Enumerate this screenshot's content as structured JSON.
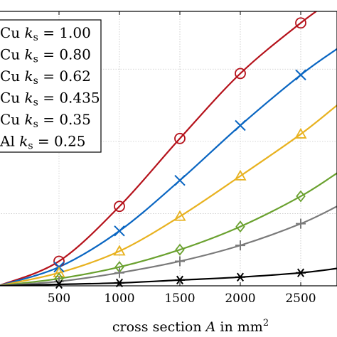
{
  "chart_data": {
    "type": "line",
    "title": "",
    "xlabel": "cross section A in mm²",
    "xlabel_parts": {
      "lead": "cross section ",
      "var": "A",
      "mid": " in mm",
      "sup": "2"
    },
    "ylabel": "",
    "xlim": [
      0,
      2800
    ],
    "ylim": [
      0,
      1.9
    ],
    "x_ticks": [
      500,
      1000,
      1500,
      2000,
      2500
    ],
    "x_tick_labels": [
      "500",
      "1000",
      "1500",
      "2000",
      "2500"
    ],
    "y_grid": [
      0.5,
      1.0,
      1.5
    ],
    "grid": true,
    "legend_position": "top-left",
    "series": [
      {
        "name": "Cu  ks = 1.00",
        "label": {
          "mat": "Cu",
          "sym": "k",
          "sub": "s",
          "val": "= 1.00"
        },
        "color": "#b5121b",
        "marker": "circle",
        "x": [
          0,
          500,
          1000,
          1500,
          2000,
          2500,
          2800
        ],
        "y": [
          0.0,
          0.17,
          0.55,
          1.02,
          1.47,
          1.82,
          2.0
        ]
      },
      {
        "name": "Cu  ks = 0.80",
        "label": {
          "mat": "Cu",
          "sym": "k",
          "sub": "s",
          "val": "= 0.80"
        },
        "color": "#0a66c2",
        "marker": "x",
        "x": [
          0,
          500,
          1000,
          1500,
          2000,
          2500,
          2800
        ],
        "y": [
          0.0,
          0.13,
          0.38,
          0.73,
          1.11,
          1.46,
          1.64
        ]
      },
      {
        "name": "Cu  ks = 0.62",
        "label": {
          "mat": "Cu",
          "sym": "k",
          "sub": "s",
          "val": "= 0.62"
        },
        "color": "#e8b220",
        "marker": "triangle",
        "x": [
          0,
          500,
          1000,
          1500,
          2000,
          2500,
          2800
        ],
        "y": [
          0.0,
          0.09,
          0.24,
          0.48,
          0.76,
          1.05,
          1.25
        ]
      },
      {
        "name": "Cu  ks = 0.435",
        "label": {
          "mat": "Cu",
          "sym": "k",
          "sub": "s",
          "val": "= 0.435"
        },
        "color": "#6aa12f",
        "marker": "diamond",
        "x": [
          0,
          500,
          1000,
          1500,
          2000,
          2500,
          2800
        ],
        "y": [
          0.0,
          0.05,
          0.13,
          0.25,
          0.41,
          0.62,
          0.78
        ]
      },
      {
        "name": "Cu  ks = 0.35",
        "label": {
          "mat": "Cu",
          "sym": "k",
          "sub": "s",
          "val": "= 0.35"
        },
        "color": "#7a7a7a",
        "marker": "plus",
        "x": [
          0,
          500,
          1000,
          1500,
          2000,
          2500,
          2800
        ],
        "y": [
          0.0,
          0.03,
          0.09,
          0.17,
          0.28,
          0.43,
          0.55
        ]
      },
      {
        "name": "Al  ks = 0.25",
        "label": {
          "mat": "Al",
          "sym": "k",
          "sub": "s",
          "val": "= 0.25"
        },
        "color": "#000000",
        "marker": "asterisk",
        "x": [
          0,
          500,
          1000,
          1500,
          2000,
          2500,
          2800
        ],
        "y": [
          0.0,
          0.01,
          0.02,
          0.04,
          0.06,
          0.09,
          0.12
        ]
      }
    ]
  }
}
